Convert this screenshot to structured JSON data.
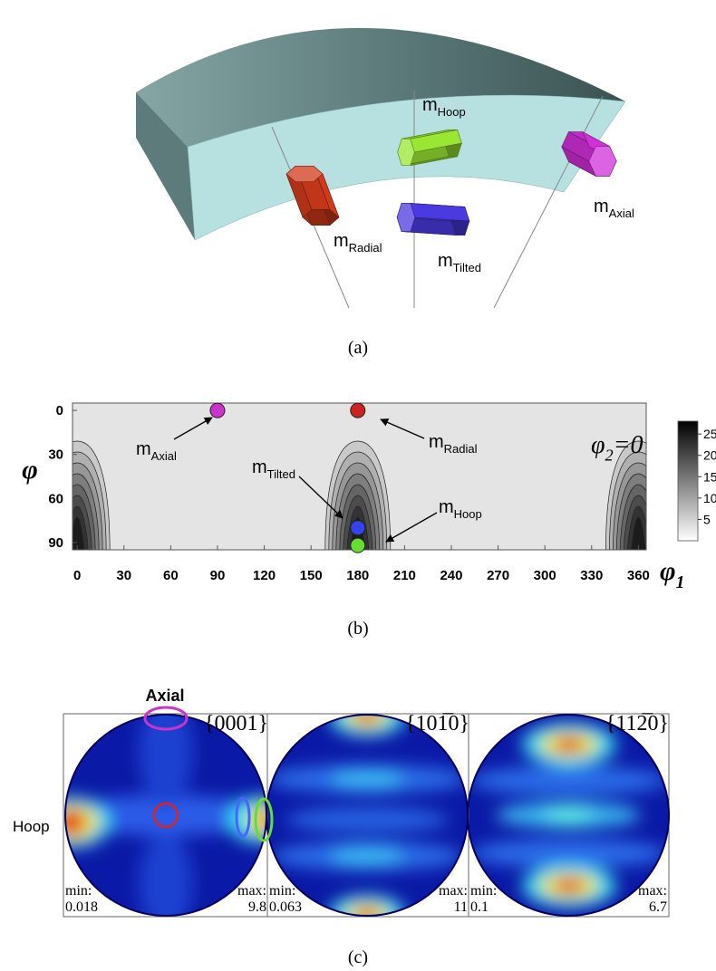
{
  "panel_a": {
    "labels": [
      {
        "base": "m",
        "sub": "Hoop"
      },
      {
        "base": "m",
        "sub": "Radial"
      },
      {
        "base": "m",
        "sub": "Tilted"
      },
      {
        "base": "m",
        "sub": "Axial"
      }
    ],
    "caption": "(a)"
  },
  "panel_b": {
    "y_label": "φ",
    "x_label": {
      "base": "φ",
      "sub": "1"
    },
    "annotation": {
      "base": "φ",
      "sub": "2",
      "rest": "=0"
    },
    "xlim": [
      -3,
      365
    ],
    "xticks": [
      0,
      30,
      60,
      90,
      120,
      150,
      180,
      210,
      240,
      270,
      300,
      330,
      360
    ],
    "ylim": [
      -5,
      95
    ],
    "yticks": [
      0,
      30,
      60,
      90
    ],
    "colorbar": {
      "lim": [
        0,
        28
      ],
      "ticks": [
        5,
        10,
        15,
        20,
        25
      ]
    },
    "points": [
      {
        "label": {
          "base": "m",
          "sub": "Axial"
        },
        "phi1": 90,
        "Phi": 0,
        "color": "#cc33cc"
      },
      {
        "label": {
          "base": "m",
          "sub": "Radial"
        },
        "phi1": 180,
        "Phi": 0,
        "color": "#cc2222"
      },
      {
        "label": {
          "base": "m",
          "sub": "Tilted"
        },
        "phi1": 180,
        "Phi": 80,
        "color": "#3344ee"
      },
      {
        "label": {
          "base": "m",
          "sub": "Hoop"
        },
        "phi1": 180,
        "Phi": 92,
        "color": "#66dd33"
      }
    ],
    "caption": "(b)"
  },
  "panel_c": {
    "axial_label": "Axial",
    "hoop_label": "Hoop",
    "pole_figures": [
      {
        "title": "{0001}",
        "min_label": "min:",
        "min": 0.018,
        "max_label": "max:",
        "max": 9.8
      },
      {
        "title": "{101̅0}",
        "min_label": "min:",
        "min": 0.063,
        "max_label": "max:",
        "max": 11
      },
      {
        "title": "{112̅0}",
        "min_label": "min:",
        "min": 0.1,
        "max_label": "max:",
        "max": 6.7
      }
    ],
    "caption": "(c)"
  }
}
